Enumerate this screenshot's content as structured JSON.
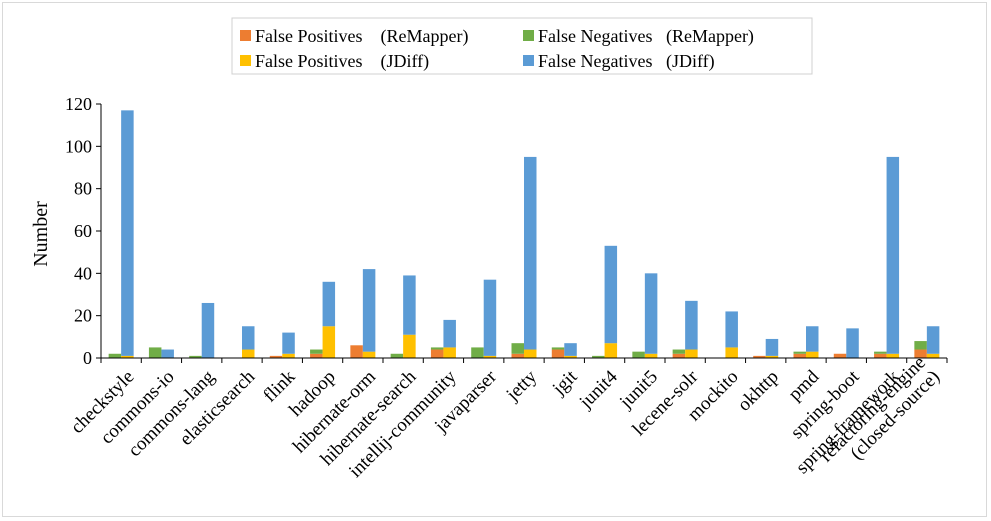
{
  "chart_data": {
    "type": "bar",
    "stacking": "stacked-pairs",
    "ylabel": "Number",
    "ylim": [
      0,
      120
    ],
    "yticks": [
      0,
      20,
      40,
      60,
      80,
      100,
      120
    ],
    "grid": false,
    "legend_position": "top-center",
    "categories": [
      "checkstyle",
      "commons-io",
      "commons-lang",
      "elasticsearch",
      "flink",
      "hadoop",
      "hibernate-orm",
      "hibernate-search",
      "intellij-community",
      "javaparser",
      "jetty",
      "jgit",
      "junit4",
      "junit5",
      "lecene-solr",
      "mockito",
      "okhttp",
      "pmd",
      "spring-boot",
      "spring-framework",
      "refactoring-engine (closed-source)"
    ],
    "category_label_lines": [
      [
        "checkstyle"
      ],
      [
        "commons-io"
      ],
      [
        "commons-lang"
      ],
      [
        "elasticsearch"
      ],
      [
        "flink"
      ],
      [
        "hadoop"
      ],
      [
        "hibernate-orm"
      ],
      [
        "hibernate-search"
      ],
      [
        "intellij-community"
      ],
      [
        "javaparser"
      ],
      [
        "jetty"
      ],
      [
        "jgit"
      ],
      [
        "junit4"
      ],
      [
        "junit5"
      ],
      [
        "lecene-solr"
      ],
      [
        "mockito"
      ],
      [
        "okhttp"
      ],
      [
        "pmd"
      ],
      [
        "spring-boot"
      ],
      [
        "spring-framework"
      ],
      [
        "refactoring-engine",
        "(closed-source)"
      ]
    ],
    "series": [
      {
        "name": "False Positives    (ReMapper)",
        "stack": "ReMapper",
        "color": "#ED7D31",
        "values": [
          0,
          0,
          0,
          0,
          1,
          2,
          6,
          0,
          4,
          0,
          2,
          4,
          0,
          0,
          2,
          0,
          1,
          2,
          2,
          2,
          4
        ]
      },
      {
        "name": "False Negatives   (ReMapper)",
        "stack": "ReMapper",
        "color": "#70AD47",
        "values": [
          2,
          5,
          1,
          0,
          0,
          2,
          0,
          2,
          1,
          5,
          5,
          1,
          1,
          3,
          2,
          0,
          0,
          1,
          0,
          1,
          4
        ]
      },
      {
        "name": "False Positives    (JDiff)",
        "stack": "JDiff",
        "color": "#FFC000",
        "values": [
          1,
          0,
          0,
          4,
          2,
          15,
          3,
          11,
          5,
          1,
          4,
          1,
          7,
          2,
          4,
          5,
          1,
          3,
          0,
          2,
          2
        ]
      },
      {
        "name": "False Negatives   (JDiff)",
        "stack": "JDiff",
        "color": "#5B9BD5",
        "values": [
          116,
          4,
          26,
          11,
          10,
          21,
          39,
          28,
          13,
          36,
          91,
          6,
          46,
          38,
          23,
          17,
          8,
          12,
          14,
          93,
          13
        ]
      }
    ]
  }
}
